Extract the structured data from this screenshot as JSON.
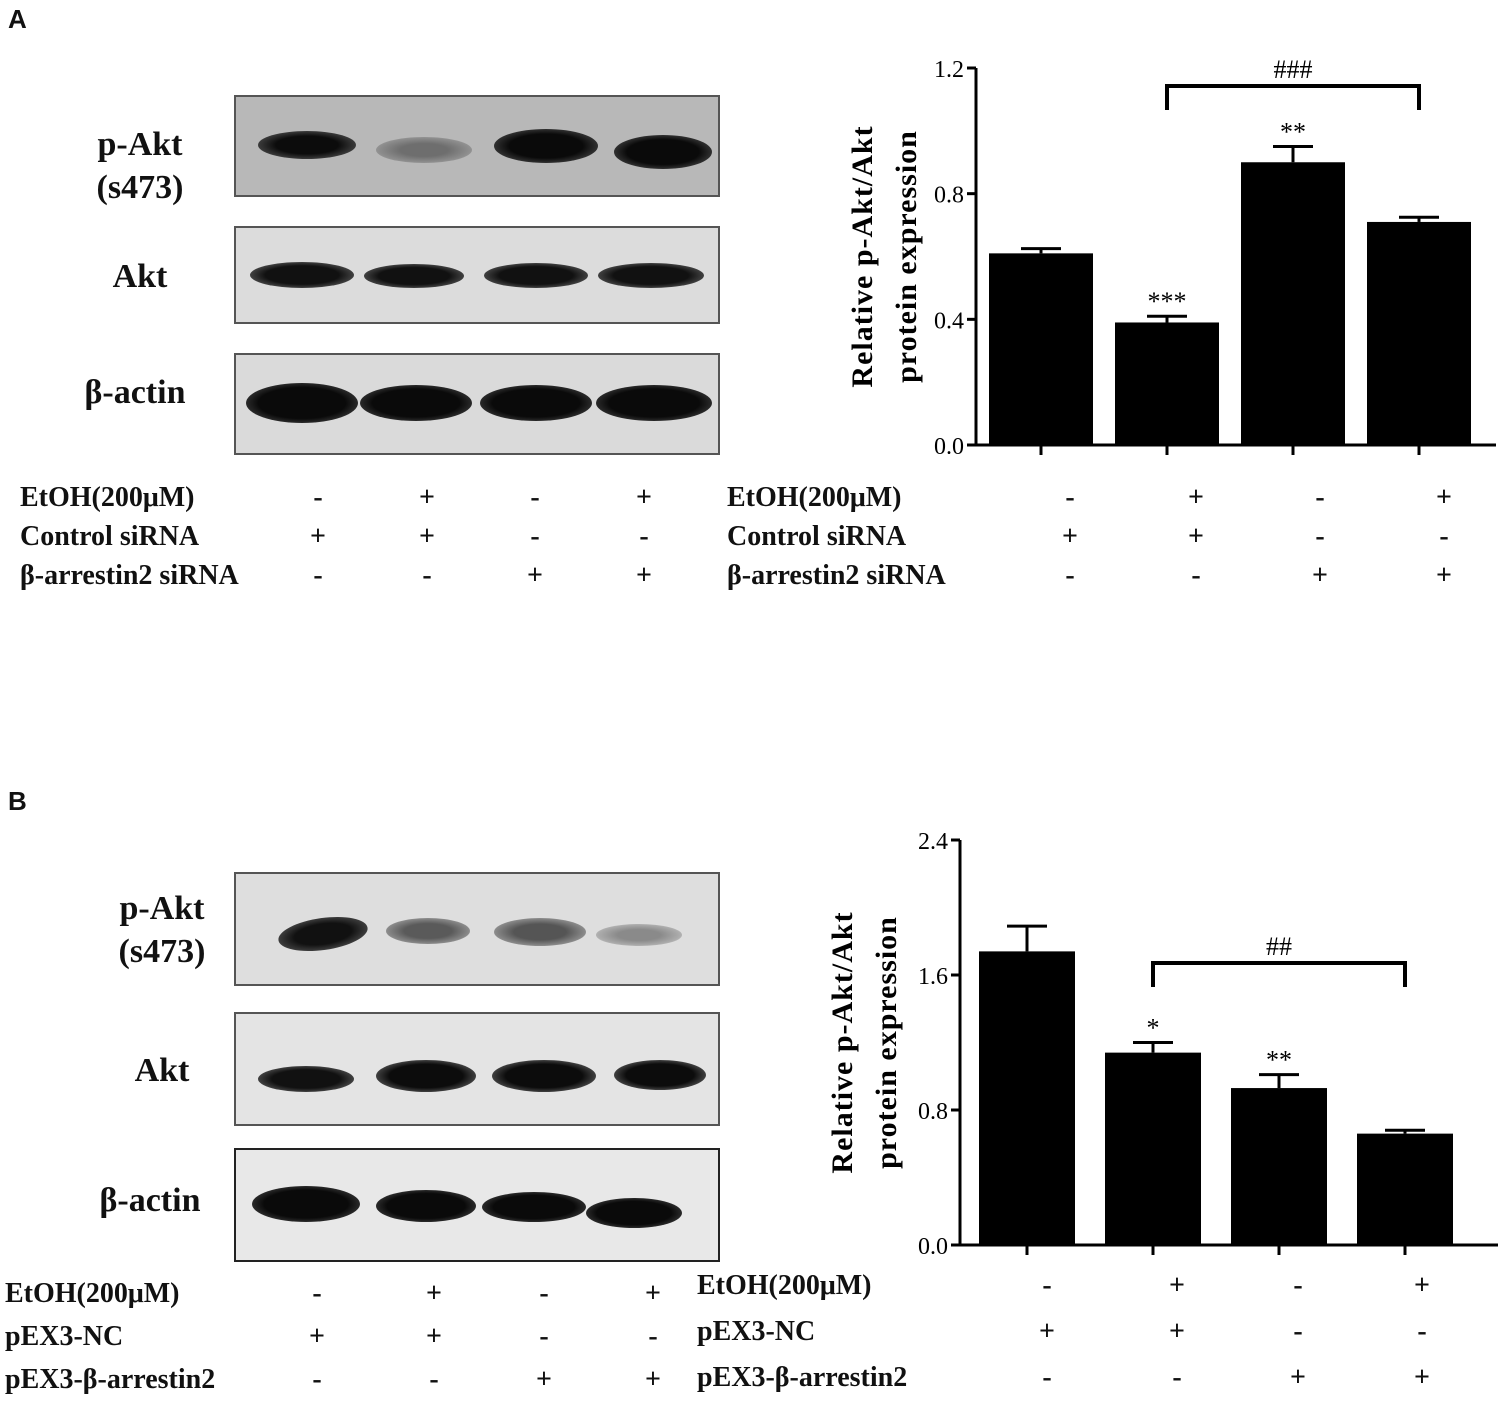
{
  "panels": [
    {
      "letter": "A",
      "blot_labels": {
        "pakt_line1": "p-Akt",
        "pakt_line2": "(s473)",
        "akt": "Akt",
        "actin": "β-actin"
      },
      "conditions": [
        {
          "label": "EtOH(200μM)",
          "signs": [
            "-",
            "+",
            "-",
            "+"
          ]
        },
        {
          "label": "Control siRNA",
          "signs": [
            "+",
            "+",
            "-",
            "-"
          ]
        },
        {
          "label": "β-arrestin2 siRNA",
          "signs": [
            "-",
            "-",
            "+",
            "+"
          ]
        }
      ],
      "chart_data": {
        "type": "bar",
        "ylabel_line1": "Relative p-Akt/Akt",
        "ylabel_line2": "protein expression",
        "ylim": [
          0,
          1.2
        ],
        "yticks": [
          "0.0",
          "0.4",
          "0.8",
          "1.2"
        ],
        "values": [
          0.61,
          0.39,
          0.9,
          0.71
        ],
        "errors": [
          0.015,
          0.02,
          0.05,
          0.015
        ],
        "annotations": [
          "",
          "***",
          "**",
          ""
        ],
        "bracket": {
          "from": 1,
          "to": 3,
          "label": "###"
        }
      }
    },
    {
      "letter": "B",
      "blot_labels": {
        "pakt_line1": "p-Akt",
        "pakt_line2": "(s473)",
        "akt": "Akt",
        "actin": "β-actin"
      },
      "conditions": [
        {
          "label": "EtOH(200μM)",
          "signs": [
            "-",
            "+",
            "-",
            "+"
          ]
        },
        {
          "label": "pEX3-NC",
          "signs": [
            "+",
            "+",
            "-",
            "-"
          ]
        },
        {
          "label": "pEX3-β-arrestin2",
          "signs": [
            "-",
            "-",
            "+",
            "+"
          ]
        }
      ],
      "chart_data": {
        "type": "bar",
        "ylabel_line1": "Relative p-Akt/Akt",
        "ylabel_line2": "protein expression",
        "ylim": [
          0,
          2.4
        ],
        "yticks": [
          "0.0",
          "0.8",
          "1.6",
          "2.4"
        ],
        "values": [
          1.74,
          1.14,
          0.93,
          0.66
        ],
        "errors": [
          0.15,
          0.06,
          0.08,
          0.02
        ],
        "annotations": [
          "",
          "*",
          "**",
          ""
        ],
        "bracket": {
          "from": 1,
          "to": 3,
          "label": "##"
        }
      }
    }
  ]
}
